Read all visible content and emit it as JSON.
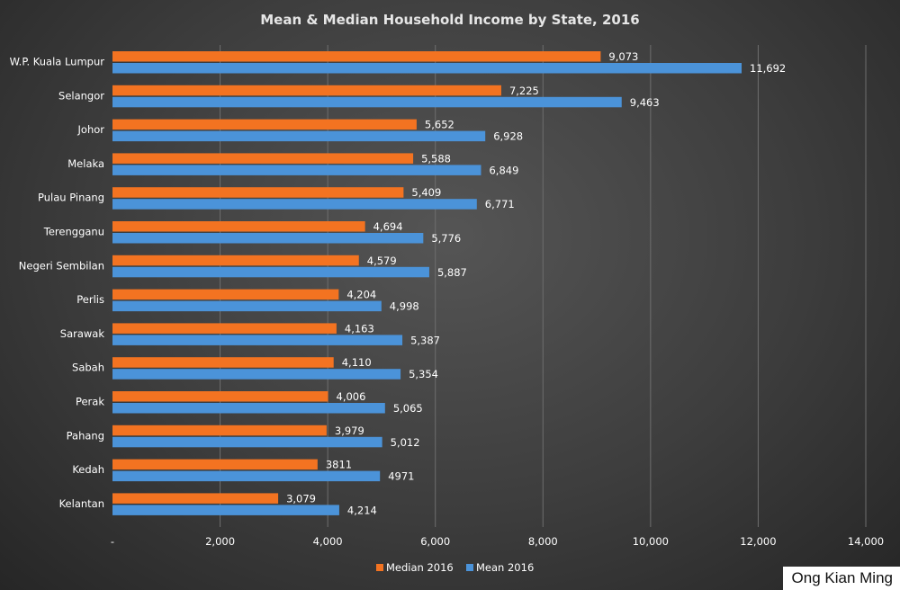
{
  "chart_data": {
    "type": "bar",
    "orientation": "horizontal",
    "title": "Mean & Median Household Income by State, 2016",
    "categories": [
      "W.P. Kuala Lumpur",
      "Selangor",
      "Johor",
      "Melaka",
      "Pulau Pinang",
      "Terengganu",
      "Negeri Sembilan",
      "Perlis",
      "Sarawak",
      "Sabah",
      "Perak",
      "Pahang",
      "Kedah",
      "Kelantan"
    ],
    "series": [
      {
        "name": "Median 2016",
        "color": "#f37321",
        "values": [
          9073,
          7225,
          5652,
          5588,
          5409,
          4694,
          4579,
          4204,
          4163,
          4110,
          4006,
          3979,
          3811,
          3079
        ],
        "labels": [
          "9,073",
          "7,225",
          "5,652",
          "5,588",
          "5,409",
          "4,694",
          "4,579",
          "4,204",
          "4,163",
          "4,110",
          "4,006",
          "3,979",
          "3811",
          "3,079"
        ]
      },
      {
        "name": "Mean 2016",
        "color": "#4b93d9",
        "values": [
          11692,
          9463,
          6928,
          6849,
          6771,
          5776,
          5887,
          4998,
          5387,
          5354,
          5065,
          5012,
          4971,
          4214
        ],
        "labels": [
          "11,692",
          "9,463",
          "6,928",
          "6,849",
          "6,771",
          "5,776",
          "5,887",
          "4,998",
          "5,387",
          "5,354",
          "5,065",
          "5,012",
          "4971",
          "4,214"
        ]
      }
    ],
    "xlim": [
      0,
      14000
    ],
    "xticks": [
      0,
      2000,
      4000,
      6000,
      8000,
      10000,
      12000,
      14000
    ],
    "xtick_labels": [
      "-",
      "2,000",
      "4,000",
      "6,000",
      "8,000",
      "10,000",
      "12,000",
      "14,000"
    ],
    "grid": true,
    "legend_position": "bottom"
  },
  "credit": "Ong Kian Ming"
}
